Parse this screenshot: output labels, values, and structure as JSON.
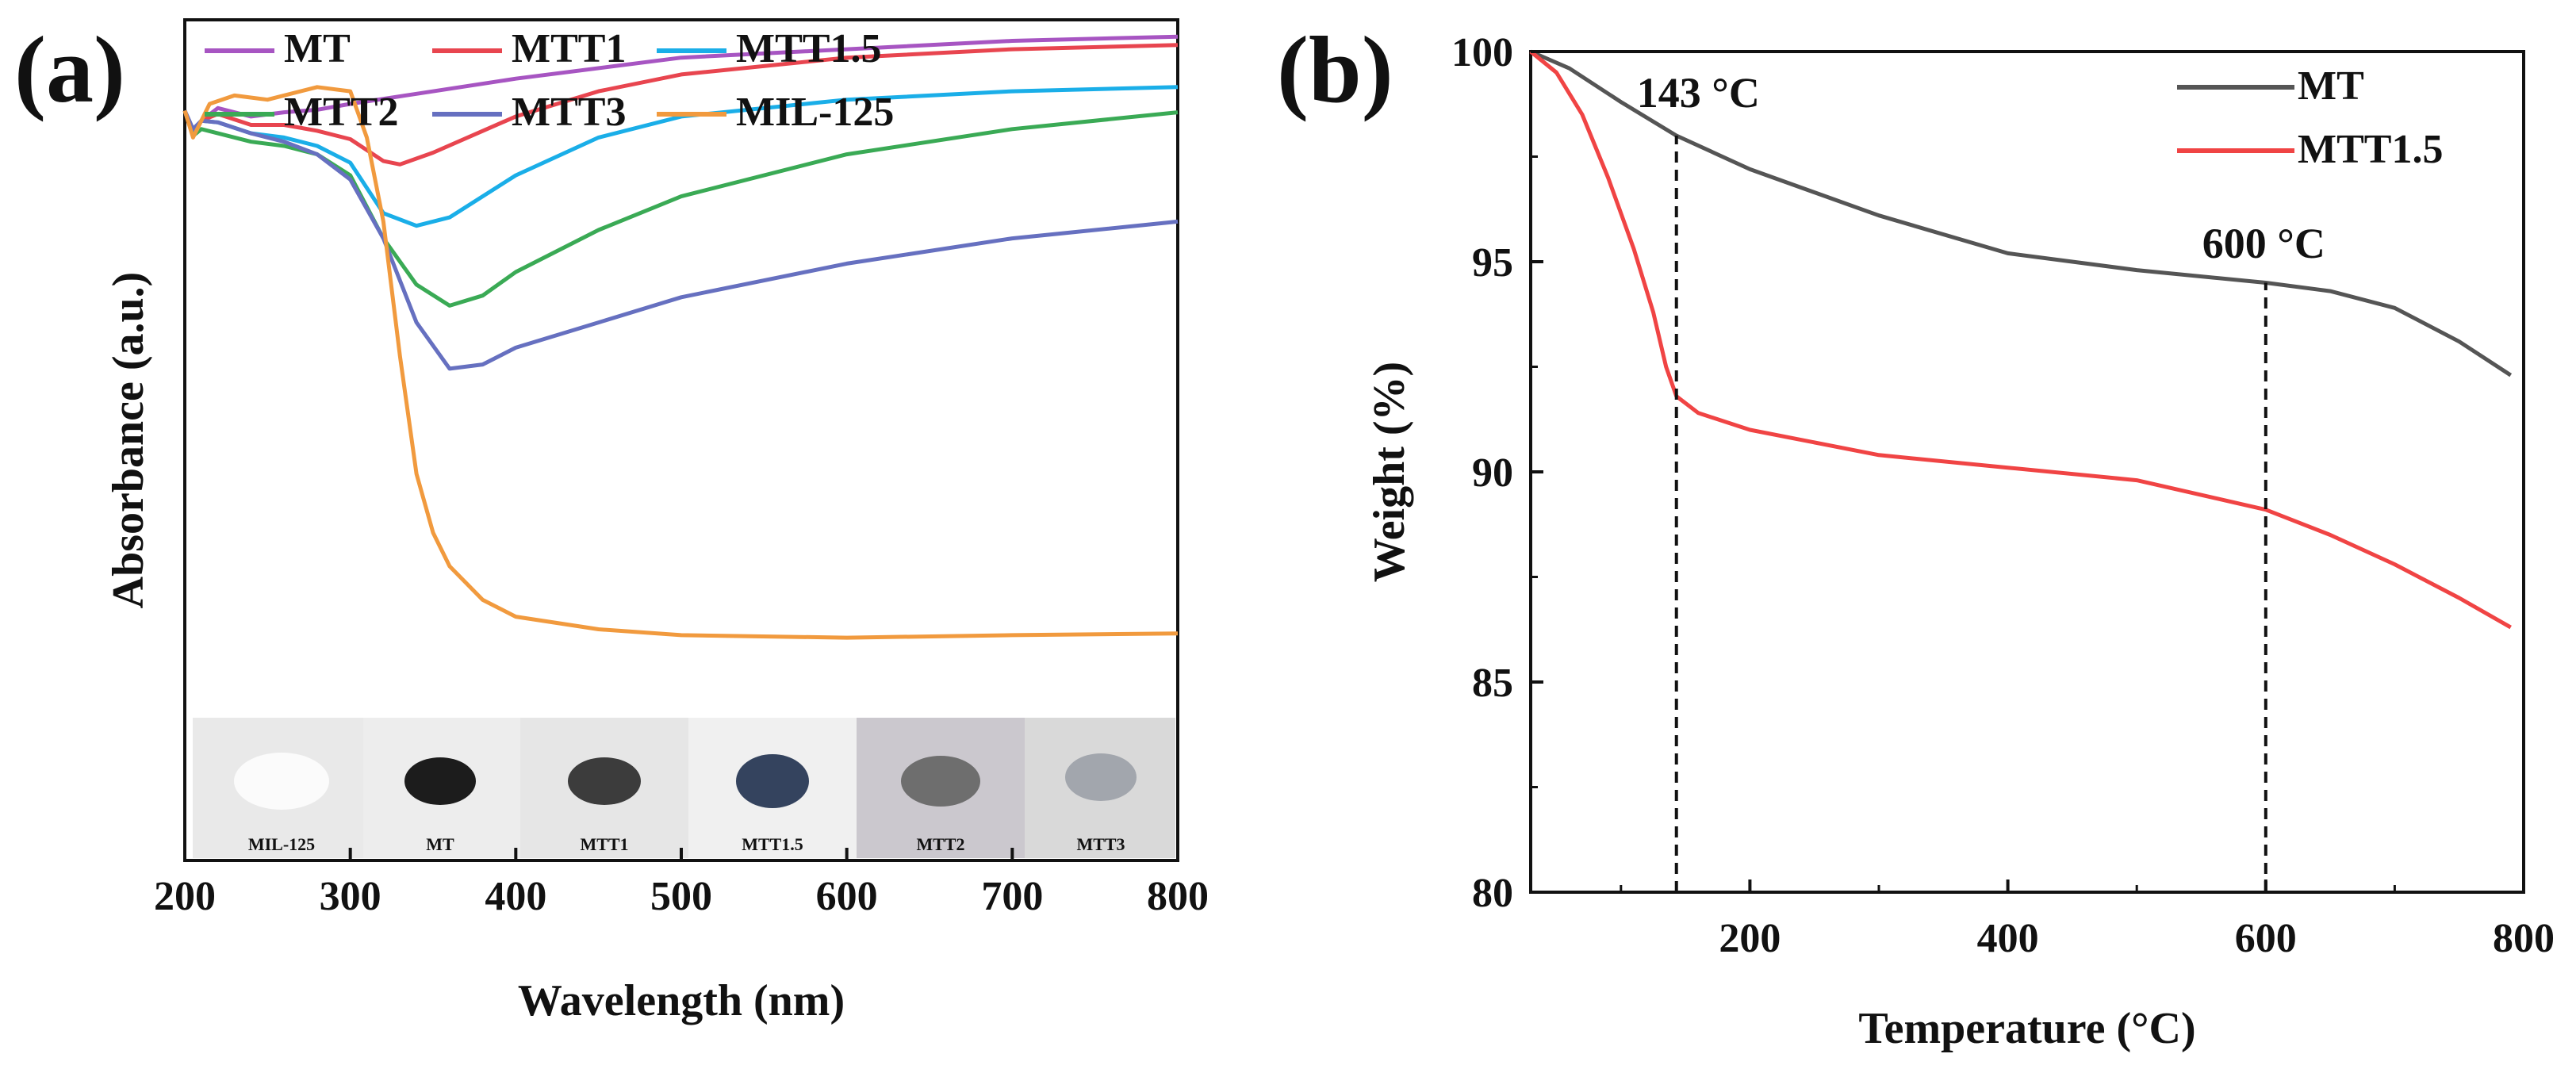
{
  "chart_data": [
    {
      "id": "a",
      "type": "line",
      "panel_label": "(a)",
      "title": "",
      "xlabel": "Wavelength (nm)",
      "ylabel": "Absorbance (a.u.)",
      "xlim": [
        200,
        800
      ],
      "ylim": [
        0,
        1
      ],
      "xticks": [
        200,
        300,
        400,
        500,
        600,
        700,
        800
      ],
      "yticks_shown": false,
      "legend_position": "top-left, two rows",
      "series": [
        {
          "name": "MT",
          "color": "#a755c2",
          "x": [
            200,
            205,
            210,
            220,
            240,
            260,
            280,
            300,
            340,
            400,
            500,
            600,
            700,
            800
          ],
          "y": [
            0.892,
            0.862,
            0.88,
            0.895,
            0.885,
            0.89,
            0.893,
            0.9,
            0.912,
            0.93,
            0.955,
            0.965,
            0.975,
            0.98
          ]
        },
        {
          "name": "MTT1",
          "color": "#e8454f",
          "x": [
            200,
            205,
            210,
            220,
            240,
            260,
            280,
            300,
            320,
            330,
            350,
            400,
            450,
            500,
            600,
            700,
            800
          ],
          "y": [
            0.892,
            0.865,
            0.88,
            0.888,
            0.875,
            0.875,
            0.868,
            0.858,
            0.832,
            0.828,
            0.842,
            0.885,
            0.915,
            0.935,
            0.955,
            0.965,
            0.97
          ]
        },
        {
          "name": "MTT1.5",
          "color": "#1aaee8",
          "x": [
            200,
            205,
            210,
            220,
            240,
            260,
            280,
            300,
            320,
            340,
            360,
            400,
            450,
            500,
            600,
            700,
            800
          ],
          "y": [
            0.892,
            0.865,
            0.88,
            0.878,
            0.865,
            0.86,
            0.85,
            0.83,
            0.77,
            0.755,
            0.765,
            0.815,
            0.86,
            0.885,
            0.905,
            0.915,
            0.92
          ]
        },
        {
          "name": "MTT2",
          "color": "#3aaa55",
          "x": [
            200,
            205,
            210,
            220,
            240,
            260,
            280,
            300,
            320,
            340,
            360,
            380,
            400,
            450,
            500,
            600,
            700,
            800
          ],
          "y": [
            0.892,
            0.862,
            0.87,
            0.865,
            0.855,
            0.85,
            0.84,
            0.815,
            0.74,
            0.685,
            0.66,
            0.672,
            0.7,
            0.75,
            0.79,
            0.84,
            0.87,
            0.89
          ]
        },
        {
          "name": "MTT3",
          "color": "#6670c0",
          "x": [
            200,
            205,
            210,
            220,
            240,
            260,
            280,
            300,
            320,
            340,
            360,
            380,
            400,
            450,
            500,
            600,
            700,
            800
          ],
          "y": [
            0.892,
            0.87,
            0.88,
            0.878,
            0.865,
            0.855,
            0.84,
            0.81,
            0.74,
            0.64,
            0.585,
            0.59,
            0.61,
            0.64,
            0.67,
            0.71,
            0.74,
            0.76
          ]
        },
        {
          "name": "MIL-125",
          "color": "#f19a3e",
          "x": [
            200,
            205,
            215,
            230,
            250,
            280,
            300,
            310,
            320,
            330,
            340,
            350,
            360,
            380,
            400,
            450,
            500,
            600,
            700,
            800
          ],
          "y": [
            0.892,
            0.86,
            0.9,
            0.91,
            0.905,
            0.92,
            0.915,
            0.86,
            0.76,
            0.6,
            0.46,
            0.39,
            0.35,
            0.31,
            0.29,
            0.275,
            0.268,
            0.265,
            0.268,
            0.27
          ]
        }
      ],
      "inset_photo_labels": [
        "MIL-125",
        "MT",
        "MTT1",
        "MTT1.5",
        "MTT2",
        "MTT3"
      ]
    },
    {
      "id": "b",
      "type": "line",
      "panel_label": "(b)",
      "title": "",
      "xlabel": "Temperature (°C)",
      "ylabel": "Weight (%)",
      "xlim": [
        30,
        800
      ],
      "ylim": [
        80,
        100
      ],
      "xticks": [
        200,
        400,
        600,
        800
      ],
      "yticks": [
        80,
        85,
        90,
        95,
        100
      ],
      "legend_position": "top-right",
      "series": [
        {
          "name": "MT",
          "color": "#555555",
          "x": [
            30,
            60,
            100,
            143,
            200,
            300,
            400,
            500,
            600,
            650,
            700,
            750,
            790
          ],
          "y": [
            100,
            99.6,
            98.8,
            98.0,
            97.2,
            96.1,
            95.2,
            94.8,
            94.5,
            94.3,
            93.9,
            93.1,
            92.3
          ]
        },
        {
          "name": "MTT1.5",
          "color": "#f04444",
          "x": [
            30,
            50,
            70,
            90,
            110,
            125,
            135,
            143,
            160,
            200,
            300,
            400,
            500,
            600,
            650,
            700,
            750,
            790
          ],
          "y": [
            100,
            99.5,
            98.5,
            97.0,
            95.3,
            93.8,
            92.5,
            91.8,
            91.4,
            91.0,
            90.4,
            90.1,
            89.8,
            89.1,
            88.5,
            87.8,
            87.0,
            86.3
          ]
        }
      ],
      "annotations": [
        {
          "text": "143 °C",
          "x": 143
        },
        {
          "text": "600 °C",
          "x": 600
        }
      ]
    }
  ]
}
